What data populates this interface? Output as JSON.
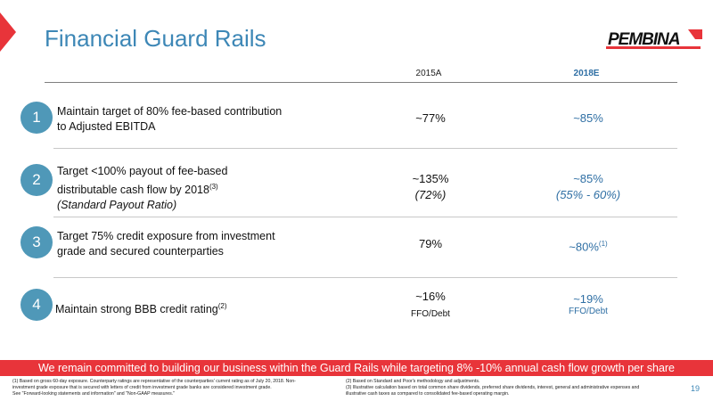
{
  "header": {
    "title": "Financial Guard Rails",
    "logo_text": "PEMBINA"
  },
  "columns": {
    "actual": "2015A",
    "estimate": "2018E"
  },
  "rows": [
    {
      "number": "1",
      "desc_line1": "Maintain target of 80% fee-based contribution",
      "desc_line2": "to Adjusted EBITDA",
      "actual": "~77%",
      "estimate": "~85%"
    },
    {
      "number": "2",
      "desc_line1": "Target <100% payout of fee-based",
      "desc_line2": "distributable cash flow by 2018",
      "desc_sup": "(3)",
      "desc_line3": "(Standard Payout Ratio)",
      "actual": "~135%",
      "actual_sub": "(72%)",
      "estimate": "~85%",
      "estimate_sub": "(55% - 60%)"
    },
    {
      "number": "3",
      "desc_line1": "Target 75% credit exposure from investment",
      "desc_line2": "grade and secured counterparties",
      "actual": "79%",
      "estimate": "~80%",
      "estimate_sup": "(1)"
    },
    {
      "number": "4",
      "desc_line1": "Maintain strong BBB credit rating",
      "desc_sup": "(2)",
      "actual": "~16%",
      "actual_sub": "FFO/Debt",
      "estimate": "~19%",
      "estimate_sub": "FFO/Debt"
    }
  ],
  "banner": "We remain committed to building our business within the Guard Rails while targeting 8% -10% annual cash flow growth per share",
  "footnotes": {
    "left_1": "(1) Based on gross 60-day exposure. Counterparty ratings are representative of the counterparties' current rating as of July 20, 2018. Non-",
    "left_2": "investment grade exposure that is secured with letters of credit from investment grade banks are considered investment grade.",
    "left_3": "See \"Forward-looking statements and information\" and \"Non-GAAP measures.\"",
    "right_1": "(2) Based on Standard and Poor's methodology and adjustments.",
    "right_2": "(3) Illustrative calculation based on total common share dividends, preferred share dividends, interest, general and administrative expenses and",
    "right_3": "illustrative cash taxes as compared to consolidated fee-based operating margin."
  },
  "page_number": "19",
  "colors": {
    "accent_blue": "#3d87b6",
    "badge_blue": "#4f98b8",
    "estimate_blue": "#2f6fa4",
    "brand_red": "#e8343a"
  }
}
